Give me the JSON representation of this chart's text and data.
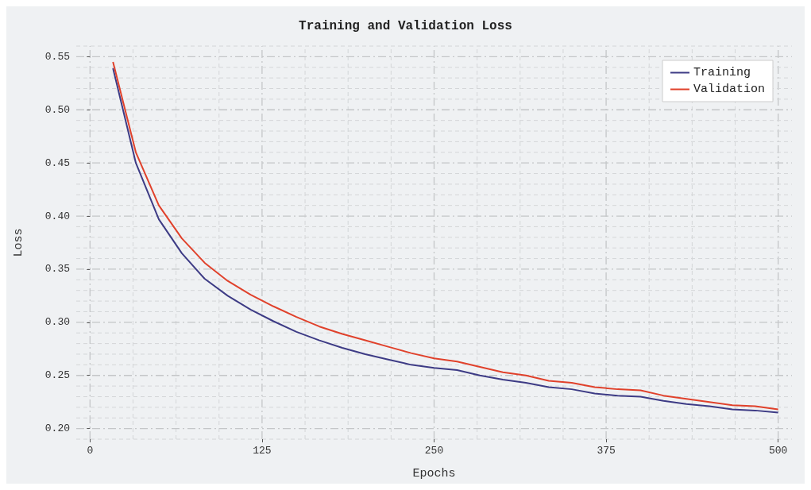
{
  "chart_data": {
    "type": "line",
    "title": "Training and Validation Loss",
    "xlabel": "Epochs",
    "ylabel": "Loss",
    "x": [
      16.7,
      33.3,
      50,
      66.7,
      83.3,
      100,
      116.7,
      133.3,
      150,
      166.7,
      183.3,
      200,
      216.7,
      233.3,
      250,
      266.7,
      283.3,
      300,
      316.7,
      333.3,
      350,
      366.7,
      383.3,
      400,
      416.7,
      433.3,
      450,
      466.7,
      483.3,
      500
    ],
    "series": [
      {
        "name": "Training",
        "color": "#3d3b85",
        "values": [
          0.539,
          0.45,
          0.397,
          0.365,
          0.341,
          0.325,
          0.312,
          0.301,
          0.291,
          0.283,
          0.276,
          0.27,
          0.265,
          0.26,
          0.257,
          0.255,
          0.25,
          0.246,
          0.243,
          0.239,
          0.237,
          0.233,
          0.231,
          0.23,
          0.226,
          0.223,
          0.221,
          0.218,
          0.217,
          0.215
        ]
      },
      {
        "name": "Validation",
        "color": "#e0412b",
        "values": [
          0.545,
          0.46,
          0.41,
          0.379,
          0.356,
          0.339,
          0.326,
          0.315,
          0.305,
          0.296,
          0.289,
          0.283,
          0.277,
          0.271,
          0.266,
          0.263,
          0.258,
          0.253,
          0.25,
          0.245,
          0.243,
          0.239,
          0.237,
          0.236,
          0.231,
          0.228,
          0.225,
          0.222,
          0.221,
          0.218
        ]
      }
    ],
    "xlim": [
      -10,
      510
    ],
    "xticks": [
      0,
      125,
      250,
      375,
      500
    ],
    "ylim": [
      0.19,
      0.56
    ],
    "yticks": [
      {
        "value": 0.2,
        "label": "0.20"
      },
      0.25,
      {
        "value": 0.3,
        "label": "0.30"
      },
      0.35,
      {
        "value": 0.4,
        "label": "0.40"
      },
      0.45,
      {
        "value": 0.5,
        "label": "0.50"
      },
      0.55
    ],
    "grid": true,
    "legend": "top right",
    "marker": "none",
    "line_style": "solid"
  }
}
